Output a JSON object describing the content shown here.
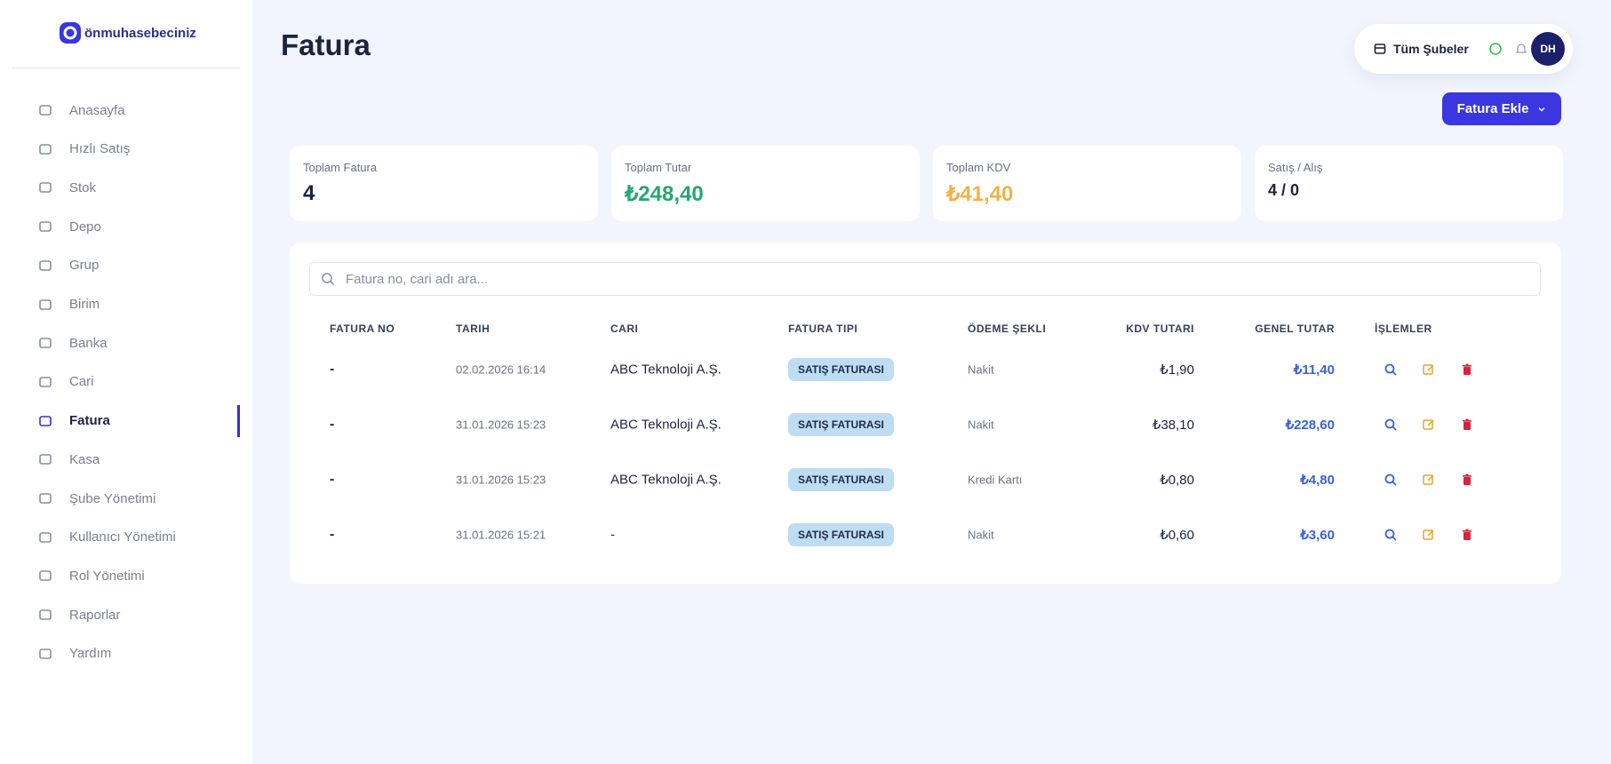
{
  "sidebar": {
    "logo": "önmuhasebeciniz",
    "menu": [
      {
        "label": "Anasayfa"
      },
      {
        "label": "Hızlı Satış"
      },
      {
        "label": "Stok"
      },
      {
        "label": "Depo"
      },
      {
        "label": "Grup"
      },
      {
        "label": "Birim"
      },
      {
        "label": "Banka"
      },
      {
        "label": "Cari"
      },
      {
        "label": "Fatura",
        "active": true
      },
      {
        "label": "Kasa"
      },
      {
        "label": "Şube Yönetimi"
      },
      {
        "label": "Kullanıcı Yönetimi"
      },
      {
        "label": "Rol Yönetimi"
      },
      {
        "label": "Raporlar"
      },
      {
        "label": "Yardım"
      }
    ]
  },
  "header": {
    "title": "Fatura",
    "branch": "Tüm Şubeler",
    "avatar": "DH",
    "add_button": "Fatura Ekle"
  },
  "stats": [
    {
      "label": "Toplam Fatura",
      "value": "4"
    },
    {
      "label": "Toplam Tutar",
      "value": "₺248,40"
    },
    {
      "label": "Toplam KDV",
      "value": "₺41,40"
    },
    {
      "label": "Satış / Alış",
      "value": "4 / 0"
    }
  ],
  "table": {
    "search_placeholder": "Fatura no, cari adı ara...",
    "columns": [
      "FATURA NO",
      "TARIH",
      "CARI",
      "FATURA TIPI",
      "ÖDEME ŞEKLI",
      "KDV TUTARI",
      "GENEL TUTAR",
      "İŞLEMLER"
    ],
    "rows": [
      [
        "-",
        "02.02.2026 16:14",
        "ABC Teknoloji A.Ş.",
        "SATIŞ FATURASI",
        "Nakit",
        "₺1,90",
        "₺11,40"
      ],
      [
        "-",
        "31.01.2026 15:23",
        "ABC Teknoloji A.Ş.",
        "SATIŞ FATURASI",
        "Nakit",
        "₺38,10",
        "₺228,60"
      ],
      [
        "-",
        "31.01.2026 15:23",
        "ABC Teknoloji A.Ş.",
        "SATIŞ FATURASI",
        "Kredi Kartı",
        "₺0,80",
        "₺4,80"
      ],
      [
        "-",
        "31.01.2026 15:21",
        "-",
        "SATIŞ FATURASI",
        "Nakit",
        "₺0,60",
        "₺3,60"
      ]
    ]
  }
}
